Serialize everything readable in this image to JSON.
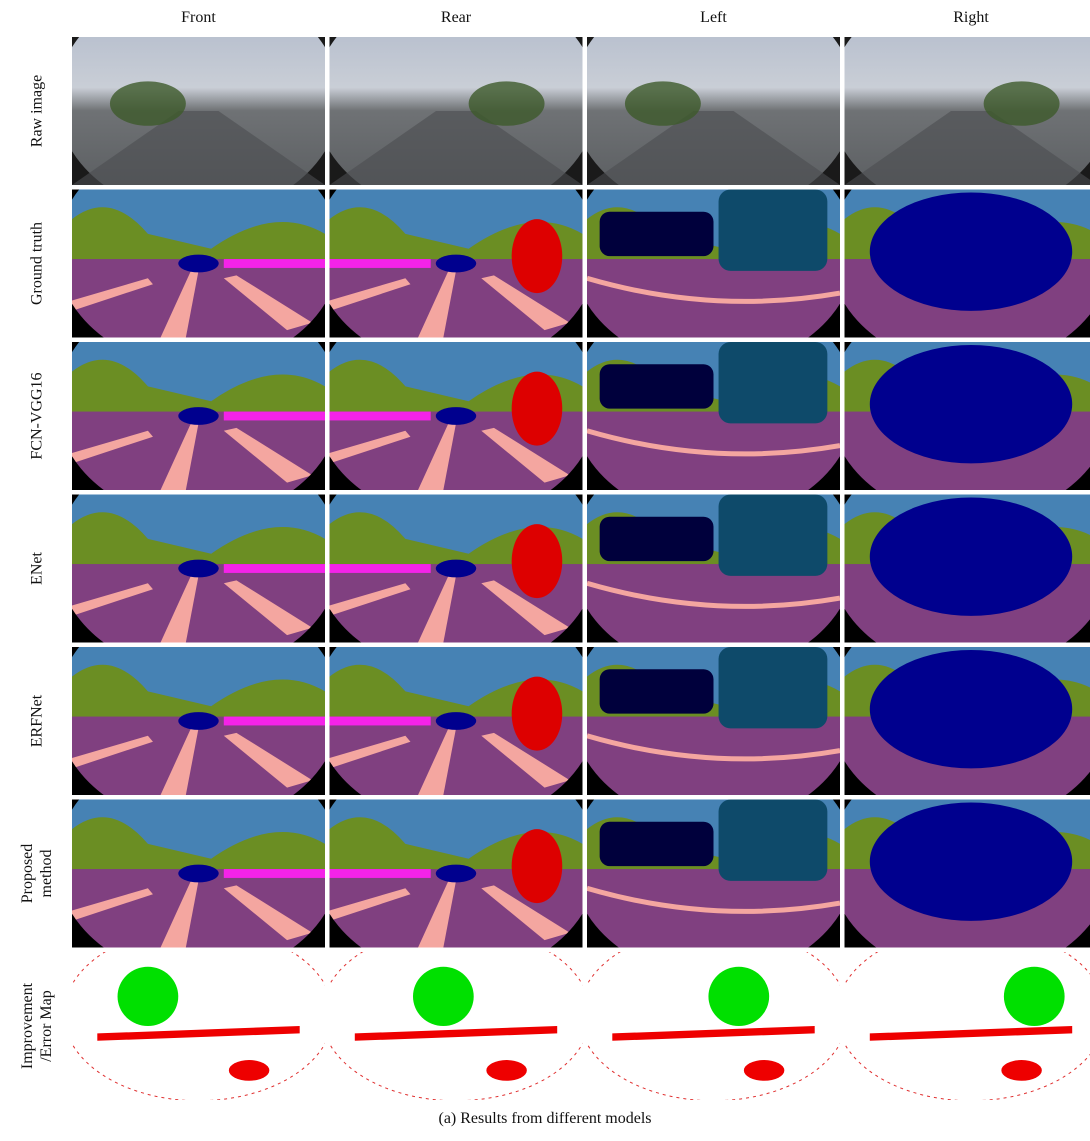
{
  "columns": [
    "Front",
    "Rear",
    "Left",
    "Right"
  ],
  "rows": [
    [
      "Raw image"
    ],
    [
      "Ground truth"
    ],
    [
      "FCN-VGG16"
    ],
    [
      "ENet"
    ],
    [
      "ERFNet"
    ],
    [
      "Proposed",
      "method"
    ],
    [
      "Improvement",
      "/Error Map"
    ]
  ],
  "caption": "(a) Results from different models"
}
